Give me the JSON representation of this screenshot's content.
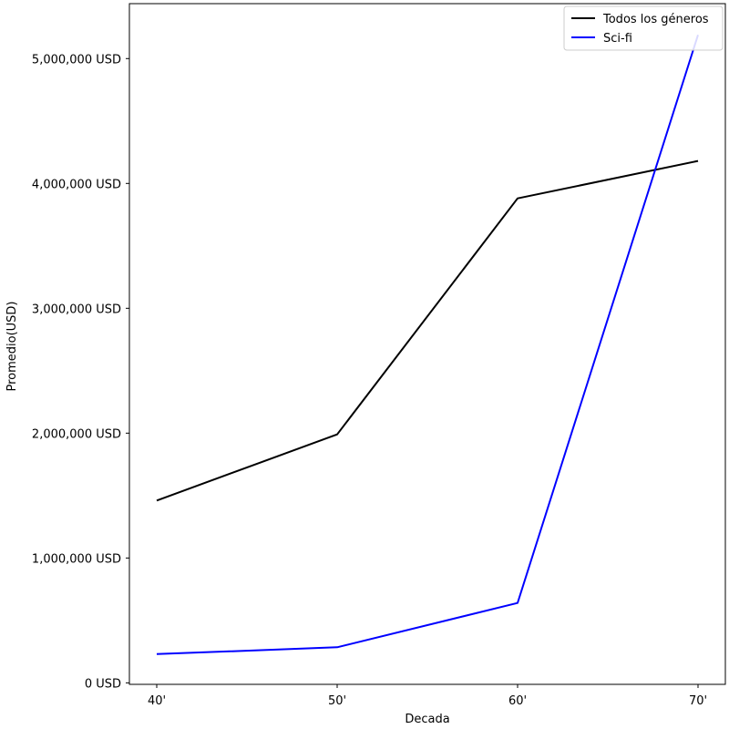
{
  "chart_data": {
    "type": "line",
    "title": "",
    "xlabel": "Decada",
    "ylabel": "Promedio(USD)",
    "categories": [
      "40'",
      "50'",
      "60'",
      "70'"
    ],
    "series": [
      {
        "name": "Todos los géneros",
        "color": "#000000",
        "values": [
          1460000,
          1990000,
          3880000,
          4180000
        ]
      },
      {
        "name": "Sci-fi",
        "color": "#0000ff",
        "values": [
          230000,
          285000,
          640000,
          5190000
        ]
      }
    ],
    "ylim": [
      -12000,
      5440000
    ],
    "yticks": [
      0,
      1000000,
      2000000,
      3000000,
      4000000,
      5000000
    ],
    "ytick_labels": [
      "0 USD",
      "1,000,000 USD",
      "2,000,000 USD",
      "3,000,000 USD",
      "4,000,000 USD",
      "5,000,000 USD"
    ],
    "legend_position": "upper right",
    "grid": false
  }
}
